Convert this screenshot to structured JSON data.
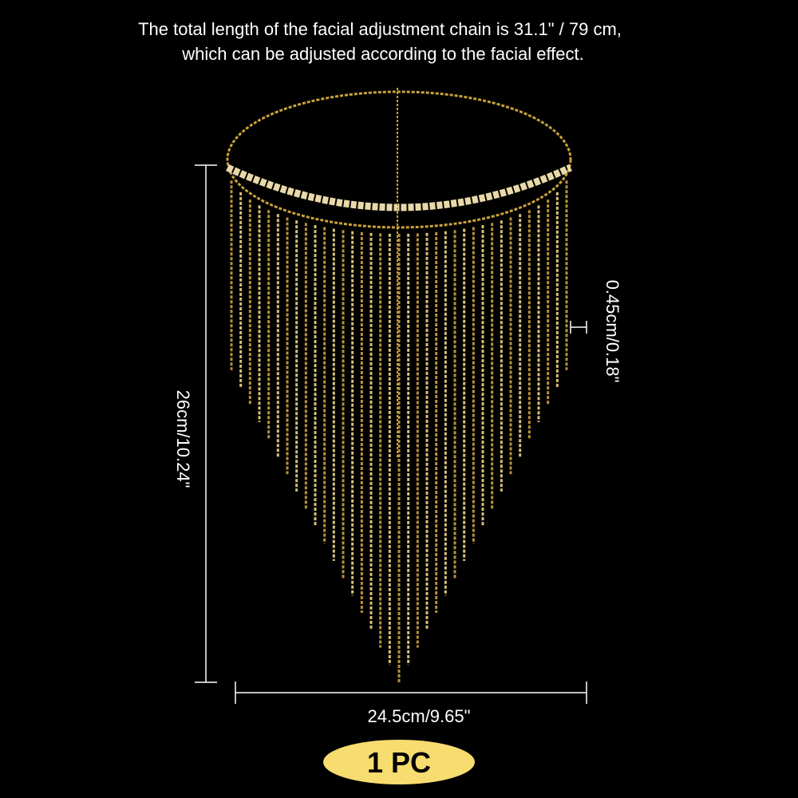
{
  "caption": {
    "lines": [
      "The total length of the facial adjustment chain is 31.1\" / 79 cm,",
      "which can be adjusted according to the facial effect."
    ]
  },
  "dimensions": {
    "height": "26cm/10.24\"",
    "width": "24.5cm/9.65\"",
    "stone": "0.45cm/0.18\""
  },
  "badge": "1 PC"
}
